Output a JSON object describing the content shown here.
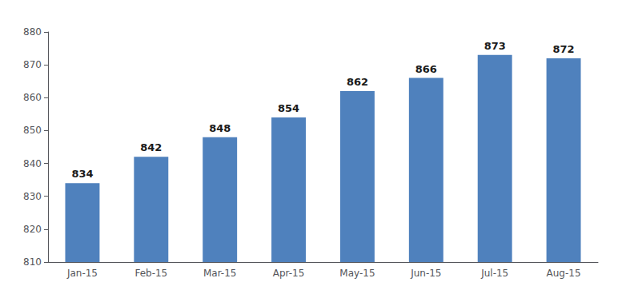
{
  "chart_data": {
    "type": "bar",
    "categories": [
      "Jan-15",
      "Feb-15",
      "Mar-15",
      "Apr-15",
      "May-15",
      "Jun-15",
      "Jul-15",
      "Aug-15"
    ],
    "values": [
      834,
      842,
      848,
      854,
      862,
      866,
      873,
      872
    ],
    "color": "#4f81bd",
    "ylim": [
      810,
      880
    ],
    "yticks": [
      810,
      820,
      830,
      840,
      850,
      860,
      870,
      880
    ],
    "grid": false,
    "data_labels": true
  }
}
